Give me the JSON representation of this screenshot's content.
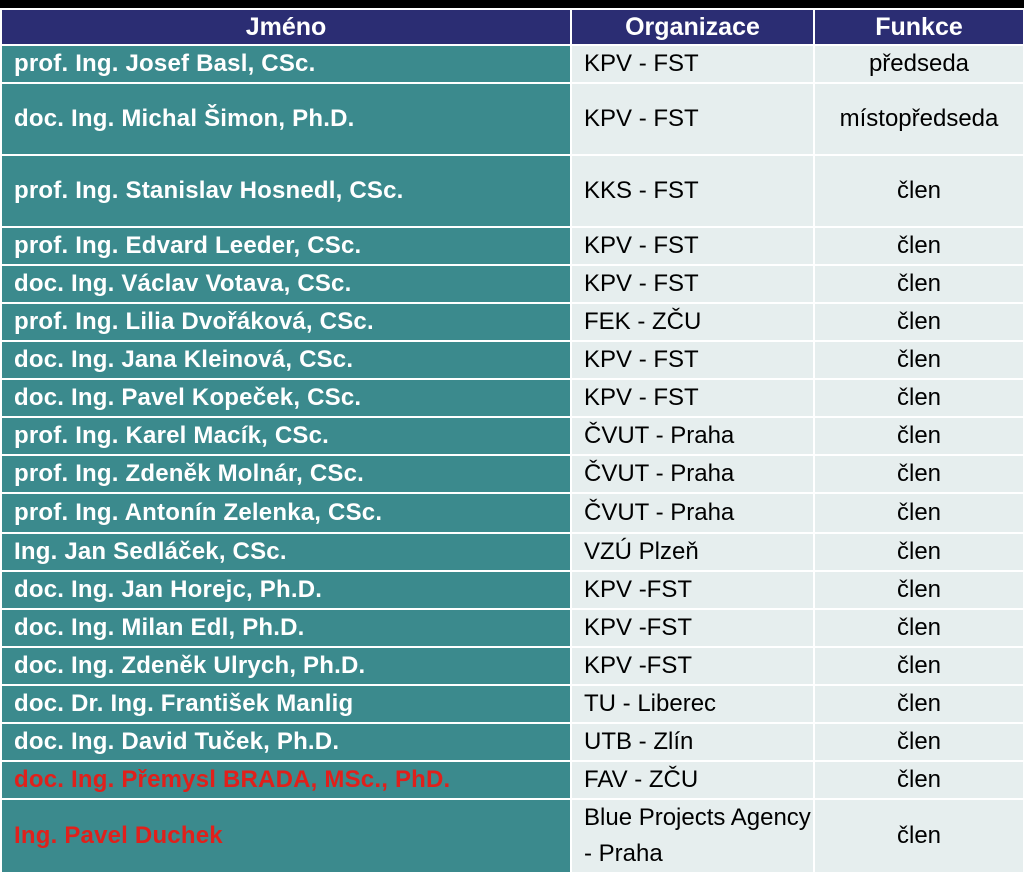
{
  "headers": {
    "name": "Jméno",
    "org": "Organizace",
    "role": "Funkce"
  },
  "colors": {
    "header_bg": "#2b2d73",
    "name_bg": "#3b8a8d",
    "cell_bg": "#e6eeee",
    "highlight_text": "#e0201b"
  },
  "rows": [
    {
      "name": "prof. Ing. Josef Basl, CSc.",
      "org": "KPV - FST",
      "role": "předseda"
    },
    {
      "name": "doc. Ing. Michal Šimon, Ph.D.",
      "org": "KPV - FST",
      "role": "místopředseda"
    },
    {
      "name": "prof. Ing. Stanislav Hosnedl, CSc.",
      "org": "KKS - FST",
      "role": "člen"
    },
    {
      "name": "prof. Ing. Edvard Leeder, CSc.",
      "org": "KPV - FST",
      "role": "člen"
    },
    {
      "name": "doc. Ing. Václav Votava, CSc.",
      "org": "KPV - FST",
      "role": "člen"
    },
    {
      "name": "prof. Ing. Lilia Dvořáková, CSc.",
      "org": "FEK - ZČU",
      "role": "člen"
    },
    {
      "name": "doc. Ing. Jana Kleinová, CSc.",
      "org": "KPV - FST",
      "role": "člen"
    },
    {
      "name": "doc. Ing. Pavel Kopeček, CSc.",
      "org": "KPV - FST",
      "role": "člen"
    },
    {
      "name": "prof. Ing. Karel Macík, CSc.",
      "org": "ČVUT - Praha",
      "role": "člen"
    },
    {
      "name": "prof. Ing. Zdeněk Molnár, CSc.",
      "org": "ČVUT - Praha",
      "role": "člen"
    },
    {
      "name": "prof. Ing. Antonín Zelenka, CSc.",
      "org": "ČVUT - Praha",
      "role": "člen"
    },
    {
      "name": "Ing. Jan Sedláček, CSc.",
      "org": "VZÚ Plzeň",
      "role": "člen"
    },
    {
      "name": "doc. Ing. Jan Horejc, Ph.D.",
      "org": "KPV -FST",
      "role": "člen"
    },
    {
      "name": "doc. Ing. Milan Edl, Ph.D.",
      "org": "KPV -FST",
      "role": "člen"
    },
    {
      "name": "doc. Ing. Zdeněk Ulrych, Ph.D.",
      "org": "KPV -FST",
      "role": "člen"
    },
    {
      "name": "doc. Dr. Ing. František Manlig",
      "org": "TU - Liberec",
      "role": "člen"
    },
    {
      "name": "doc. Ing. David Tuček, Ph.D.",
      "org": "UTB - Zlín",
      "role": "člen"
    },
    {
      "name": "doc. Ing. Přemysl  BRADA, MSc., PhD.",
      "org": "FAV - ZČU",
      "role": "člen",
      "highlight": true
    },
    {
      "name": "Ing. Pavel Duchek",
      "org": "Blue Projects Agency - Praha",
      "role": "člen",
      "highlight": true
    }
  ]
}
